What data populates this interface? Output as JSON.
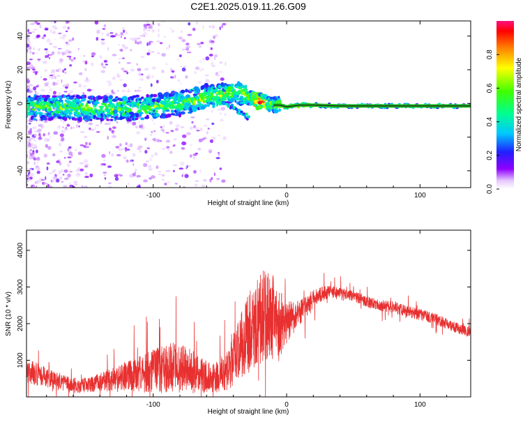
{
  "title": "C2E1.2025.019.11.26.G09",
  "colors": {
    "snr_line": "#e83030",
    "signal_line": "#1a1a1a",
    "signal_halo": "#22c022",
    "background": "#ffffff"
  },
  "chart_data": [
    {
      "type": "heatmap",
      "name_hint": "spectrogram",
      "xlabel": "Height of straight line (km)",
      "ylabel": "Frequency (Hz)",
      "xlim": [
        -195,
        138
      ],
      "ylim": [
        -50,
        49
      ],
      "xticks": [
        -100,
        0,
        100
      ],
      "xtick_labels": [
        "-100",
        "0",
        "100"
      ],
      "yticks": [
        -40,
        -20,
        0,
        20,
        40
      ],
      "ytick_labels": [
        "-40",
        "-20",
        "0",
        "20",
        "40"
      ],
      "grid": false,
      "dominant_frequency_curve": {
        "x": [
          -195,
          -180,
          -160,
          -140,
          -120,
          -100,
          -80,
          -70,
          -60,
          -50,
          -45,
          -40,
          -35,
          -30,
          -25,
          -20,
          -15,
          -10,
          -5,
          0,
          10,
          20,
          40,
          60,
          80,
          100,
          138
        ],
        "y": [
          -3,
          -2.5,
          -2.5,
          -3,
          -3,
          -2,
          0,
          2,
          4,
          5,
          6,
          7,
          6,
          5,
          2,
          1,
          0,
          -1,
          -1,
          -2,
          -1,
          -1,
          -1.5,
          -1.5,
          -1.5,
          -1.5,
          -1.5
        ]
      },
      "colorbar": {
        "label": "Normalized spectral amplitude",
        "range": [
          0,
          1
        ],
        "ticks": [
          0.0,
          0.2,
          0.4,
          0.6,
          0.8
        ],
        "tick_labels": [
          "0.0",
          "0.2",
          "0.4",
          "0.6",
          "0.8"
        ]
      }
    },
    {
      "type": "line",
      "name_hint": "snr",
      "xlabel": "Height of straight line (km)",
      "ylabel": "SNR (10 * v/v)",
      "xlim": [
        -195,
        138
      ],
      "ylim": [
        0,
        4550
      ],
      "xticks": [
        -100,
        0,
        100
      ],
      "xtick_labels": [
        "-100",
        "0",
        "100"
      ],
      "yticks": [
        1000,
        2000,
        3000,
        4000
      ],
      "ytick_labels": [
        "1000",
        "2000",
        "3000",
        "4000"
      ],
      "grid": false,
      "series": [
        {
          "x": [
            -195,
            -185,
            -175,
            -165,
            -155,
            -145,
            -135,
            -125,
            -115,
            -105,
            -95,
            -85,
            -75,
            -65,
            -55,
            -45,
            -40,
            -35,
            -30,
            -25,
            -20,
            -15,
            -10,
            -5,
            0,
            10,
            20,
            30,
            40,
            50,
            60,
            70,
            80,
            90,
            100,
            110,
            120,
            130,
            138
          ],
          "y": [
            700,
            600,
            450,
            350,
            300,
            350,
            450,
            500,
            600,
            650,
            750,
            800,
            750,
            600,
            500,
            700,
            1000,
            1400,
            1700,
            1900,
            2100,
            2300,
            2200,
            2000,
            2000,
            2300,
            2700,
            2850,
            2850,
            2750,
            2600,
            2500,
            2450,
            2350,
            2250,
            2150,
            2000,
            1850,
            1750
          ],
          "spread": [
            350,
            300,
            250,
            220,
            200,
            220,
            300,
            380,
            450,
            550,
            650,
            700,
            650,
            500,
            400,
            550,
            700,
            900,
            1100,
            1200,
            1300,
            1300,
            1200,
            900,
            600,
            350,
            250,
            180,
            150,
            150,
            150,
            160,
            160,
            160,
            160,
            150,
            150,
            140,
            130
          ]
        }
      ]
    }
  ]
}
